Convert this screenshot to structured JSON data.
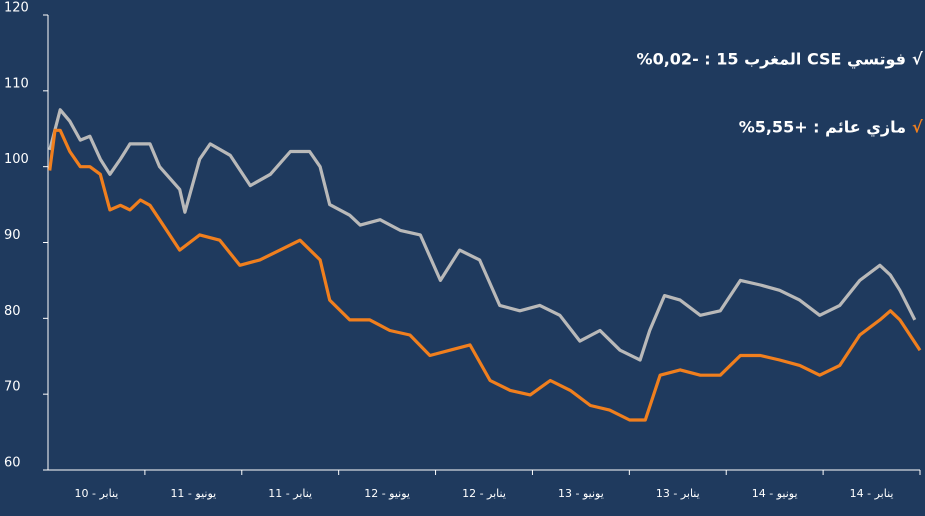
{
  "chart_data": {
    "type": "line",
    "categories": [
      "ينابر - 10",
      "يونيو - 11",
      "ينابر - 11",
      "يونيو - 12",
      "ينابر - 12",
      "يونيو - 13",
      "ينابر - 13",
      "يونيو - 14",
      "ينابر - 14"
    ],
    "annotations": [
      {
        "check": "√",
        "text": "فوتسي CSE المغرب 15 : -0,02%",
        "color": "#ffffff"
      },
      {
        "check": "√",
        "text": "مازي عائم : +5,55%",
        "color": "#f07f1e"
      }
    ],
    "xlim": [
      0,
      100
    ],
    "ylim": [
      60,
      120
    ],
    "yticks": [
      60,
      70,
      80,
      90,
      100,
      110,
      120
    ],
    "grid": false,
    "series": [
      {
        "color": "#b9b9b9",
        "x": [
          0.2,
          1.4,
          2.5,
          3.7,
          4.8,
          6,
          7.1,
          8.3,
          9.4,
          11.7,
          12.8,
          15.1,
          15.7,
          17.4,
          18.6,
          20.9,
          23.2,
          25.5,
          27.8,
          30,
          31.2,
          32.3,
          34.6,
          35.8,
          38.1,
          40.4,
          42.7,
          45,
          47.2,
          49.5,
          51.8,
          54.1,
          56.4,
          58.7,
          61,
          63.3,
          65.6,
          67.9,
          69,
          70.7,
          72.5,
          74.8,
          77.1,
          79.4,
          81.7,
          83.9,
          86.2,
          88.5,
          90.8,
          93.1,
          95.4,
          96.6,
          97.7,
          99.4
        ],
        "values": [
          102.2,
          107.5,
          106,
          103.5,
          104,
          101,
          99,
          101,
          103,
          103,
          100,
          97,
          94,
          101,
          103,
          101.5,
          97.5,
          99,
          102,
          102,
          100,
          95,
          93.6,
          92.3,
          93,
          91.6,
          91,
          85,
          89,
          87.7,
          81.7,
          81,
          81.7,
          80.4,
          77,
          78.4,
          75.8,
          74.5,
          78.4,
          83,
          82.4,
          80.4,
          81,
          85,
          84.4,
          83.7,
          82.4,
          80.4,
          81.7,
          85,
          87,
          85.7,
          83.7,
          79.8
        ]
      },
      {
        "color": "#f07f1e",
        "x": [
          0.2,
          0.8,
          1.4,
          2.5,
          3.7,
          4.8,
          6,
          7.1,
          8.3,
          9.4,
          10.6,
          11.7,
          12.8,
          15.1,
          17.4,
          19.7,
          22,
          24.3,
          26.6,
          28.9,
          31.2,
          32.3,
          34.6,
          36.9,
          39.2,
          41.5,
          43.8,
          46.1,
          48.4,
          50.7,
          53,
          55.3,
          57.6,
          59.9,
          62.2,
          64.4,
          66.7,
          68.5,
          70.2,
          72.5,
          74.8,
          77.1,
          79.4,
          81.7,
          83.9,
          86.2,
          88.5,
          90.8,
          93.1,
          95.4,
          96.6,
          97.7,
          100
        ],
        "values": [
          99.5,
          104.8,
          104.8,
          102,
          100,
          100,
          99,
          94.3,
          94.9,
          94.3,
          95.6,
          94.9,
          93,
          89,
          91,
          90.3,
          87,
          87.7,
          89,
          90.3,
          87.7,
          82.4,
          79.8,
          79.8,
          78.4,
          77.8,
          75.1,
          75.8,
          76.5,
          71.8,
          70.5,
          69.9,
          71.8,
          70.5,
          68.5,
          67.9,
          66.6,
          66.6,
          72.5,
          73.2,
          72.5,
          72.5,
          75.1,
          75.1,
          74.5,
          73.8,
          72.5,
          73.8,
          77.8,
          79.8,
          81,
          79.8,
          75.8
        ]
      }
    ]
  }
}
